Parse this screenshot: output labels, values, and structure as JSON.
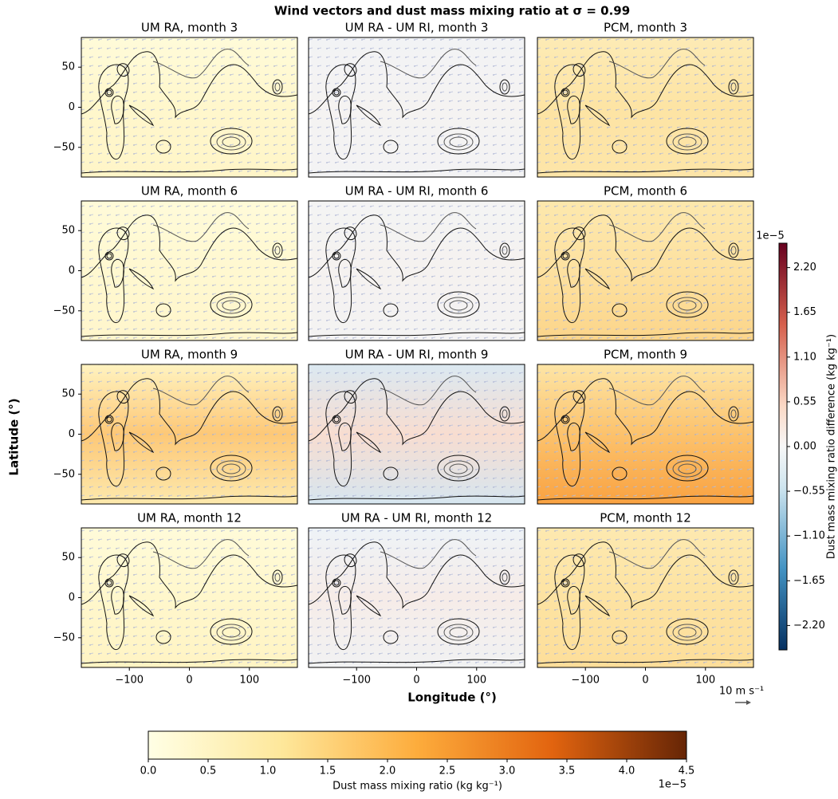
{
  "chart_data": {
    "type": "map-grid",
    "title": "Wind vectors and dust mass mixing ratio at σ = 0.99",
    "xlabel": "Longitude (°)",
    "ylabel": "Latitude (°)",
    "xlim": [
      -180,
      180
    ],
    "xticks": [
      {
        "value": -100,
        "label": "−100"
      },
      0,
      100
    ],
    "ylim": [
      -87,
      87
    ],
    "yticks": [
      {
        "value": -50,
        "label": "−50"
      },
      0,
      50
    ],
    "panels": [
      {
        "title": "UM RA, month 3"
      },
      {
        "title": "UM RA - UM RI, month 3"
      },
      {
        "title": "PCM, month 3"
      },
      {
        "title": "UM RA, month 6"
      },
      {
        "title": "UM RA - UM RI, month 6"
      },
      {
        "title": "PCM, month 6"
      },
      {
        "title": "UM RA, month 9"
      },
      {
        "title": "UM RA - UM RI, month 9"
      },
      {
        "title": "PCM, month 9"
      },
      {
        "title": "UM RA, month 12"
      },
      {
        "title": "UM RA - UM RI, month 12"
      },
      {
        "title": "PCM, month 12"
      }
    ],
    "colorbar": {
      "label": "Dust mass mixing ratio (kg kg⁻¹)",
      "offset_label": "1e−5",
      "lim": [
        0,
        4.5
      ],
      "ticks": [
        {
          "value": 0,
          "label": "0.0"
        },
        0.5,
        {
          "value": 1,
          "label": "1.0"
        },
        1.5,
        {
          "value": 2,
          "label": "2.0"
        },
        2.5,
        {
          "value": 3,
          "label": "3.0"
        },
        3.5,
        {
          "value": 4,
          "label": "4.0"
        },
        4.5
      ]
    },
    "diff_colorbar": {
      "label": "Dust mass mixing ratio difference (kg kg⁻¹)",
      "offset_label": "1e−5",
      "lim": [
        -2.5,
        2.5
      ],
      "ticks": [
        {
          "value": 2.2,
          "label": "2.20"
        },
        1.65,
        {
          "value": 1.1,
          "label": "1.10"
        },
        0.55,
        {
          "value": 0,
          "label": "0.00"
        },
        {
          "value": -0.55,
          "label": "−0.55"
        },
        {
          "value": -1.1,
          "label": "−1.10"
        },
        {
          "value": -1.65,
          "label": "−1.65"
        },
        {
          "value": -2.2,
          "label": "−2.20"
        }
      ]
    },
    "quiver_key": {
      "label": "10 m s⁻¹"
    }
  }
}
